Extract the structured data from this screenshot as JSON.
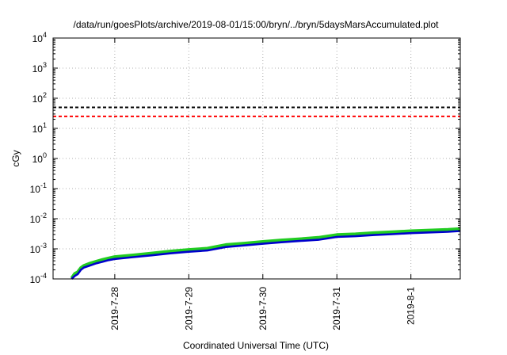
{
  "chart_data": {
    "type": "line",
    "title": "/data/run/goesPlots/archive/2019-08-01/15:00/bryn/../bryn/5daysMarsAccumulated.plot",
    "xlabel": "Coordinated Universal Time (UTC)",
    "ylabel": "cGy",
    "yscale": "log",
    "ylim": [
      0.0001,
      10000
    ],
    "xlim": [
      "2019-07-27 04:00",
      "2019-08-01 16:00"
    ],
    "x_ticks": [
      "2019-7-28",
      "2019-7-29",
      "2019-7-30",
      "2019-7-31",
      "2019-8-1"
    ],
    "y_ticks": [
      {
        "value": 0.0001,
        "base": "10",
        "exp": "-4"
      },
      {
        "value": 0.001,
        "base": "10",
        "exp": "-3"
      },
      {
        "value": 0.01,
        "base": "10",
        "exp": "-2"
      },
      {
        "value": 0.1,
        "base": "10",
        "exp": "-1"
      },
      {
        "value": 1,
        "base": "10",
        "exp": "0"
      },
      {
        "value": 10,
        "base": "10",
        "exp": "1"
      },
      {
        "value": 100,
        "base": "10",
        "exp": "2"
      },
      {
        "value": 1000,
        "base": "10",
        "exp": "3"
      },
      {
        "value": 10000,
        "base": "10",
        "exp": "4"
      }
    ],
    "grid": true,
    "legend": "none",
    "reference_lines": [
      {
        "value": 50,
        "color": "#000000",
        "style": "dashed"
      },
      {
        "value": 25,
        "color": "#ff0000",
        "style": "dashed"
      }
    ],
    "series": [
      {
        "color": "#22cc22",
        "x": [
          "2019-07-27 10:00",
          "2019-07-27 11:00",
          "2019-07-27 12:00",
          "2019-07-27 13:00",
          "2019-07-27 14:00",
          "2019-07-27 16:00",
          "2019-07-27 18:00",
          "2019-07-27 20:00",
          "2019-07-27 22:00",
          "2019-07-28 00:00",
          "2019-07-28 06:00",
          "2019-07-28 12:00",
          "2019-07-28 18:00",
          "2019-07-29 00:00",
          "2019-07-29 06:00",
          "2019-07-29 12:00",
          "2019-07-29 18:00",
          "2019-07-30 00:00",
          "2019-07-30 06:00",
          "2019-07-30 12:00",
          "2019-07-30 18:00",
          "2019-07-31 00:00",
          "2019-07-31 06:00",
          "2019-07-31 12:00",
          "2019-07-31 18:00",
          "2019-08-01 00:00",
          "2019-08-01 06:00",
          "2019-08-01 12:00",
          "2019-08-01 16:00"
        ],
        "values": [
          0.0001,
          0.00014,
          0.00016,
          0.00022,
          0.00026,
          0.00031,
          0.00036,
          0.00041,
          0.00046,
          0.00051,
          0.00058,
          0.00067,
          0.00078,
          0.00088,
          0.00097,
          0.00128,
          0.00143,
          0.00162,
          0.00182,
          0.002,
          0.00222,
          0.00275,
          0.0029,
          0.00318,
          0.0034,
          0.00368,
          0.00388,
          0.00408,
          0.00435
        ]
      },
      {
        "color": "#0000cc",
        "x": [
          "2019-07-27 10:00",
          "2019-07-27 11:00",
          "2019-07-27 12:00",
          "2019-07-27 13:00",
          "2019-07-27 14:00",
          "2019-07-27 16:00",
          "2019-07-27 18:00",
          "2019-07-27 20:00",
          "2019-07-27 22:00",
          "2019-07-28 00:00",
          "2019-07-28 06:00",
          "2019-07-28 12:00",
          "2019-07-28 18:00",
          "2019-07-29 00:00",
          "2019-07-29 06:00",
          "2019-07-29 12:00",
          "2019-07-29 18:00",
          "2019-07-30 00:00",
          "2019-07-30 06:00",
          "2019-07-30 12:00",
          "2019-07-30 18:00",
          "2019-07-31 00:00",
          "2019-07-31 06:00",
          "2019-07-31 12:00",
          "2019-07-31 18:00",
          "2019-08-01 00:00",
          "2019-08-01 06:00",
          "2019-08-01 12:00",
          "2019-08-01 16:00"
        ],
        "values": [
          0.0001,
          0.000125,
          0.000145,
          0.0002,
          0.00024,
          0.00028,
          0.00033,
          0.00037,
          0.00042,
          0.00046,
          0.00053,
          0.00061,
          0.00071,
          0.0008,
          0.00088,
          0.00115,
          0.0013,
          0.00147,
          0.00165,
          0.00182,
          0.002,
          0.00248,
          0.00262,
          0.00287,
          0.00307,
          0.00332,
          0.0035,
          0.00368,
          0.0039
        ]
      }
    ]
  }
}
